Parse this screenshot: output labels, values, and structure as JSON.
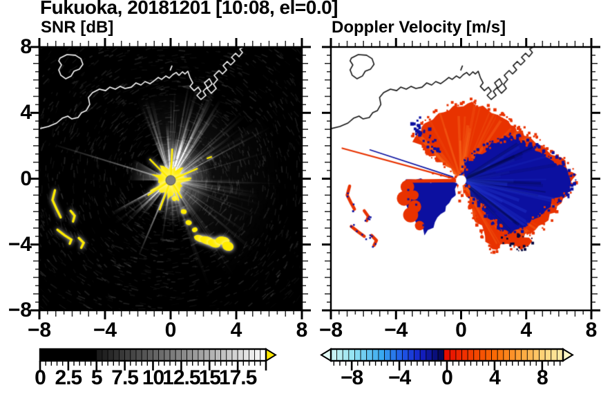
{
  "title": "Fukuoka, 20181201 [10:08, el=0.0]",
  "panels": {
    "snr": {
      "label": "SNR [dB]",
      "x_tick_labels": [
        "−8",
        "−4",
        "0",
        "4",
        "8"
      ],
      "x_tick_values": [
        -8,
        -4,
        0,
        4,
        8
      ],
      "y_tick_labels": [
        "8",
        "4",
        "0",
        "−4",
        "−8"
      ],
      "y_tick_values": [
        8,
        4,
        0,
        -4,
        -8
      ]
    },
    "vel": {
      "label": "Doppler Velocity [m/s]",
      "x_tick_labels": [
        "−8",
        "−4",
        "0",
        "4",
        "8"
      ],
      "x_tick_values": [
        -8,
        -4,
        0,
        4,
        8
      ]
    }
  },
  "colorbars": {
    "snr": {
      "tick_labels": [
        "0",
        "2.5",
        "5",
        "7.5",
        "10",
        "12.5",
        "15",
        "17.5"
      ],
      "tick_values": [
        0,
        2.5,
        5,
        7.5,
        10,
        12.5,
        15,
        17.5
      ],
      "min": 0,
      "max": 20,
      "cell_step": 0.5,
      "ramp_start": 5,
      "low_color": "#000000",
      "high_color": "#ffffff",
      "overflow_color": "#ffe800"
    },
    "vel": {
      "tick_labels": [
        "−8",
        "−4",
        "0",
        "4",
        "8"
      ],
      "tick_values": [
        -8,
        -4,
        0,
        4,
        8
      ],
      "min": -9.75,
      "max": 9.75,
      "cell_step": 0.5,
      "stops_neg": [
        [
          0,
          "#d8f6f3"
        ],
        [
          0.22,
          "#8fe2f2"
        ],
        [
          0.45,
          "#38a8f0"
        ],
        [
          0.62,
          "#1f5ae8"
        ],
        [
          0.78,
          "#1420c8"
        ],
        [
          0.92,
          "#070c6e"
        ],
        [
          1,
          "#03043a"
        ]
      ],
      "stops_pos": [
        [
          0,
          "#e60c00"
        ],
        [
          0.2,
          "#f23c00"
        ],
        [
          0.42,
          "#fa6e06"
        ],
        [
          0.62,
          "#fda43a"
        ],
        [
          0.82,
          "#fed67c"
        ],
        [
          1,
          "#fcf2b0"
        ]
      ],
      "arrow_neg": "#e2fbf6",
      "arrow_pos": "#fdf6c4"
    }
  },
  "chart_data": [
    {
      "type": "heatmap",
      "title": "SNR [dB]",
      "units": "dB",
      "xlim": [
        -8,
        8
      ],
      "ylim": [
        -8,
        8
      ],
      "radar_center": [
        0,
        -0.1
      ],
      "colorbar": {
        "min": 0,
        "max": 20,
        "ticks": [
          0,
          2.5,
          5,
          7.5,
          10,
          12.5,
          15,
          17.5
        ],
        "scheme": "black-to-white",
        "overflow": "yellow"
      },
      "coastline": {
        "shore": [
          [
            -8,
            3.04
          ],
          [
            -7.45,
            3.17
          ],
          [
            -6.95,
            3.38
          ],
          [
            -6.61,
            3.67
          ],
          [
            -6.27,
            3.8
          ],
          [
            -6.02,
            3.63
          ],
          [
            -5.64,
            3.72
          ],
          [
            -5.43,
            4.01
          ],
          [
            -5.14,
            4.14
          ],
          [
            -4.93,
            4.51
          ],
          [
            -5.01,
            4.93
          ],
          [
            -4.76,
            5.23
          ],
          [
            -4.34,
            5.44
          ],
          [
            -3.96,
            5.35
          ],
          [
            -3.71,
            5.56
          ],
          [
            -3.37,
            5.44
          ],
          [
            -3.07,
            5.61
          ],
          [
            -2.78,
            5.48
          ],
          [
            -2.4,
            5.56
          ],
          [
            -2.11,
            5.82
          ],
          [
            -1.81,
            5.69
          ],
          [
            -1.56,
            5.9
          ],
          [
            -1.26,
            5.77
          ],
          [
            -0.97,
            5.98
          ],
          [
            -0.76,
            6.15
          ],
          [
            -0.55,
            6.03
          ],
          [
            -0.29,
            6.24
          ],
          [
            -0.08,
            6.11
          ],
          [
            0.13,
            6.32
          ],
          [
            0.34,
            6.45
          ],
          [
            0.51,
            6.28
          ],
          [
            0.72,
            6.49
          ],
          [
            0.88,
            6.36
          ],
          [
            1.05,
            6.53
          ],
          [
            1.18,
            6.15
          ],
          [
            1.35,
            5.82
          ],
          [
            1.18,
            5.61
          ],
          [
            1.43,
            5.35
          ],
          [
            1.68,
            5.56
          ],
          [
            1.85,
            5.31
          ],
          [
            1.6,
            5.06
          ],
          [
            1.85,
            4.81
          ],
          [
            2.15,
            5.06
          ],
          [
            1.98,
            5.31
          ],
          [
            2.23,
            5.56
          ],
          [
            2.06,
            5.82
          ],
          [
            2.36,
            6.07
          ],
          [
            2.53,
            5.77
          ],
          [
            2.23,
            5.48
          ],
          [
            2.48,
            5.19
          ],
          [
            2.78,
            5.48
          ],
          [
            2.61,
            5.73
          ],
          [
            2.86,
            6.03
          ],
          [
            2.65,
            6.28
          ],
          [
            2.95,
            6.57
          ],
          [
            3.16,
            6.36
          ],
          [
            3.41,
            6.61
          ],
          [
            3.2,
            6.87
          ],
          [
            3.45,
            7.12
          ],
          [
            3.66,
            6.91
          ],
          [
            3.92,
            7.16
          ],
          [
            3.71,
            7.37
          ],
          [
            3.96,
            7.62
          ],
          [
            4.17,
            7.41
          ],
          [
            4.38,
            7.66
          ],
          [
            4.21,
            7.87
          ],
          [
            4.42,
            8
          ]
        ],
        "island": [
          [
            -6.74,
            7.33
          ],
          [
            -6.32,
            7.54
          ],
          [
            -5.81,
            7.5
          ],
          [
            -5.47,
            7.29
          ],
          [
            -5.35,
            6.95
          ],
          [
            -5.56,
            6.66
          ],
          [
            -5.89,
            6.53
          ],
          [
            -6.06,
            6.24
          ],
          [
            -6.4,
            6.07
          ],
          [
            -6.69,
            6.28
          ],
          [
            -6.82,
            6.61
          ],
          [
            -6.65,
            6.91
          ],
          [
            -6.82,
            7.16
          ]
        ],
        "islet": [
          [
            -0.02,
            6.6
          ],
          [
            0.08,
            6.85
          ]
        ]
      },
      "features": {
        "ray_sectors": [
          {
            "a0": -113,
            "a1": -35,
            "n": 46,
            "rmin": 2.5,
            "rmax": 6.2,
            "alpha": 0.5
          },
          {
            "a0": -35,
            "a1": 75,
            "n": 32,
            "rmin": 2.0,
            "rmax": 7.0,
            "alpha": 0.25
          },
          {
            "a0": 75,
            "a1": 102,
            "n": 9,
            "rmin": 1.5,
            "rmax": 4.5,
            "alpha": 0.22
          },
          {
            "a0": 127,
            "a1": 152,
            "n": 13,
            "rmin": 2.0,
            "rmax": 5.4,
            "alpha": 0.38
          },
          {
            "a0": -180,
            "a1": -150,
            "n": 5,
            "rmin": 1.2,
            "rmax": 3.4,
            "alpha": 0.14
          }
        ],
        "blocked_sectors": [
          [
            -150,
            -113
          ],
          [
            152,
            180
          ],
          [
            102,
            127
          ]
        ],
        "thin_rays": [
          {
            "angle": -163,
            "r": 7.2,
            "alpha": 0.55
          },
          {
            "angle": 113,
            "r": 4.9,
            "alpha": 0.8
          }
        ],
        "glow_sectors": [
          {
            "a0": -113,
            "a1": -35,
            "r": 5.5,
            "alpha": 0.13
          },
          {
            "a0": -35,
            "a1": 60,
            "r": 7.0,
            "alpha": 0.08
          }
        ],
        "center_glow": {
          "r": 2.6,
          "alpha": 0.5
        },
        "center_echo": {
          "color": "#ffec00",
          "r_min": 0.45,
          "r_max": 1.7,
          "spikes": 40
        },
        "echo_trail": [
          [
            0.25,
            -1.2
          ],
          [
            0.8,
            -2.0
          ],
          [
            1.1,
            -2.67
          ],
          [
            1.47,
            -3.1
          ],
          [
            1.77,
            -3.63
          ],
          [
            2.23,
            -3.76
          ],
          [
            2.65,
            -3.93
          ],
          [
            3.16,
            -3.76
          ],
          [
            3.49,
            -4.1
          ]
        ],
        "echo_arcs": [
          [
            [
              -7.05,
              -0.7
            ],
            [
              -7.2,
              -1.3
            ],
            [
              -6.95,
              -1.85
            ],
            [
              -6.7,
              -2.35
            ]
          ],
          [
            [
              -6.1,
              -1.95
            ],
            [
              -5.85,
              -2.25
            ],
            [
              -5.95,
              -2.6
            ]
          ],
          [
            [
              -6.9,
              -3.1
            ],
            [
              -6.45,
              -3.45
            ],
            [
              -6.05,
              -3.7
            ],
            [
              -6.15,
              -3.95
            ]
          ],
          [
            [
              -5.6,
              -3.6
            ],
            [
              -5.3,
              -3.9
            ],
            [
              -5.45,
              -4.2
            ]
          ]
        ],
        "small_echo": [
          2.36,
          1.28
        ],
        "radar_dot_color": "#7d7d7d",
        "coast_color": "#ffffff"
      }
    },
    {
      "type": "heatmap",
      "title": "Doppler Velocity [m/s]",
      "units": "m/s",
      "xlim": [
        -8,
        8
      ],
      "ylim": [
        -8,
        8
      ],
      "radar_center": [
        0,
        -0.1
      ],
      "colorbar": {
        "min": -9.75,
        "max": 9.75,
        "ticks": [
          -8,
          -4,
          0,
          4,
          8
        ],
        "scheme": "diverging cyan-blue-navy / red-orange-yellow"
      },
      "regions": {
        "away_red_blob": [
          [
            -0.15,
            0.15
          ],
          [
            -1.2,
            0.95
          ],
          [
            -2.05,
            1.65
          ],
          [
            -2.9,
            2.35
          ],
          [
            -2.35,
            3.1
          ],
          [
            -1.8,
            3.65
          ],
          [
            -1.1,
            4.05
          ],
          [
            -0.5,
            4.35
          ],
          [
            0.1,
            4.55
          ],
          [
            0.7,
            4.6
          ],
          [
            1.3,
            4.35
          ],
          [
            1.9,
            4.05
          ],
          [
            2.5,
            3.65
          ],
          [
            3.1,
            3.3
          ],
          [
            3.7,
            2.85
          ],
          [
            4.4,
            2.4
          ],
          [
            5.1,
            1.85
          ],
          [
            6.1,
            1.2
          ],
          [
            7.05,
            0.2
          ],
          [
            6.6,
            -0.75
          ],
          [
            6.2,
            -1.5
          ],
          [
            5.5,
            -2.2
          ],
          [
            4.8,
            -2.9
          ],
          [
            4.0,
            -3.45
          ],
          [
            3.2,
            -3.9
          ],
          [
            2.45,
            -4.05
          ],
          [
            1.85,
            -4.35
          ],
          [
            1.45,
            -3.5
          ],
          [
            1.0,
            -2.6
          ],
          [
            0.6,
            -1.8
          ],
          [
            0.3,
            -1.0
          ],
          [
            0.1,
            -0.45
          ]
        ],
        "toward_navy_blob": [
          [
            0.3,
            1.0
          ],
          [
            1.2,
            1.6
          ],
          [
            2.2,
            2.2
          ],
          [
            2.9,
            2.45
          ],
          [
            3.6,
            2.3
          ],
          [
            4.3,
            2.0
          ],
          [
            5.2,
            1.5
          ],
          [
            6.2,
            0.8
          ],
          [
            6.9,
            -0.2
          ],
          [
            6.5,
            -0.95
          ],
          [
            5.8,
            -1.25
          ],
          [
            5.2,
            -1.8
          ],
          [
            4.5,
            -2.4
          ],
          [
            3.8,
            -2.95
          ],
          [
            3.0,
            -3.2
          ],
          [
            2.3,
            -2.9
          ],
          [
            1.8,
            -2.3
          ],
          [
            1.2,
            -1.6
          ],
          [
            0.5,
            -0.8
          ],
          [
            0.25,
            -0.2
          ]
        ],
        "toward_wedge": [
          [
            0.0,
            -0.15
          ],
          [
            -3.4,
            -0.1
          ],
          [
            -3.55,
            -1.0
          ],
          [
            -3.2,
            -1.9
          ],
          [
            -2.6,
            -2.9
          ],
          [
            -2.2,
            -3.4
          ],
          [
            -1.4,
            -2.4
          ],
          [
            -0.6,
            -1.2
          ]
        ],
        "wedge_top_red_stripe": [
          [
            -0.2,
            -0.12
          ],
          [
            -3.3,
            -0.15
          ]
        ],
        "left_red_cluster": [
          [
            -3.3,
            -0.5
          ],
          [
            -3.5,
            -1.2
          ],
          [
            -2.9,
            -1.0
          ],
          [
            -3.1,
            -2.2
          ],
          [
            -2.55,
            -2.85
          ],
          [
            -2.85,
            -1.7
          ]
        ],
        "thin_rays": [
          {
            "color": "#e83200",
            "to": [
              -7.3,
              1.85
            ]
          },
          {
            "color": "#0a10a0",
            "to": [
              -5.6,
              1.75
            ]
          }
        ],
        "navy_speck_band": [
          [
            -2.9,
            3.7
          ],
          [
            -1.6,
            1.85
          ]
        ],
        "white_gap_rays": [
          {
            "angle": 84,
            "len": 2.1
          },
          {
            "angle": 96,
            "len": 2.9
          },
          {
            "angle": 107,
            "len": 2.4
          }
        ],
        "ship_tracks": [
          [
            [
              -6.85,
              -0.45
            ],
            [
              -7.0,
              -1.0
            ],
            [
              -6.75,
              -1.5
            ],
            [
              -6.55,
              -1.85
            ]
          ],
          [
            [
              -5.95,
              -1.95
            ],
            [
              -5.7,
              -2.3
            ],
            [
              -5.8,
              -2.55
            ]
          ],
          [
            [
              -6.75,
              -2.9
            ],
            [
              -6.3,
              -3.25
            ],
            [
              -5.95,
              -3.5
            ]
          ],
          [
            [
              -5.5,
              -3.45
            ],
            [
              -5.2,
              -3.75
            ],
            [
              -5.35,
              -4.05
            ]
          ]
        ],
        "hook": [
          [
            2.6,
            -3.5
          ],
          [
            3.1,
            -3.75
          ],
          [
            3.5,
            -3.55
          ],
          [
            3.9,
            -3.5
          ],
          [
            4.4,
            -3.75
          ],
          [
            4.1,
            -4.0
          ],
          [
            3.6,
            -4.25
          ],
          [
            3.2,
            -4.0
          ],
          [
            2.8,
            -3.95
          ]
        ],
        "colors": {
          "away": "#e83200",
          "away_light": "#ff7c28",
          "toward": "#0c10a0",
          "toward_dark": "#04063c",
          "toward_light": "#2840d8"
        },
        "coast_color": "#111111"
      }
    }
  ]
}
